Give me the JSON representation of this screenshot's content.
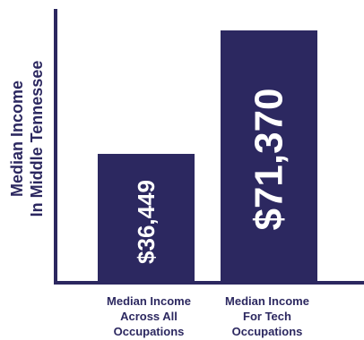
{
  "colors": {
    "bar": "#2c2860",
    "axis": "#2c2860",
    "label_text": "#2c2860",
    "bar_label_text": "#ffffff"
  },
  "chart_data": {
    "type": "bar",
    "title": "",
    "xlabel": "",
    "ylabel_lines": [
      "Median Income",
      "In Middle Tennessee"
    ],
    "categories": [
      [
        "Median Income",
        "Across All",
        "Occupations"
      ],
      [
        "Median Income",
        "For Tech",
        "Occupations"
      ]
    ],
    "values": [
      36449,
      71370
    ],
    "data_labels": [
      "$36,449",
      "$71,370"
    ],
    "ylim": [
      0,
      81000
    ],
    "grid": false,
    "legend": "none"
  }
}
